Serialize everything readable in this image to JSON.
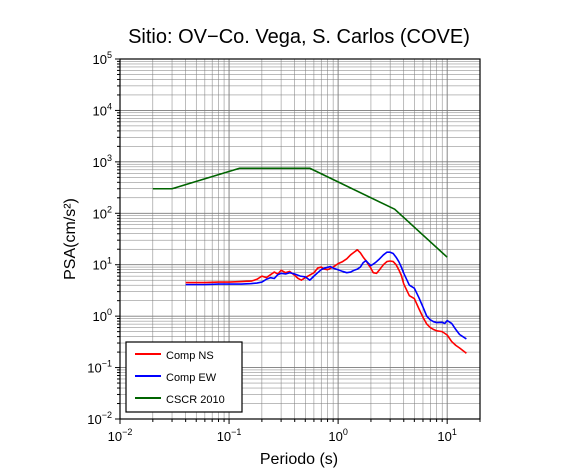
{
  "chart_data": {
    "type": "line",
    "title": "Sitio: OV−Co. Vega, S. Carlos (COVE)",
    "xlabel": "Periodo (s)",
    "ylabel": "PSA(cm/s²)",
    "x_scale": "log",
    "y_scale": "log",
    "xlim": [
      0.01,
      20
    ],
    "ylim": [
      0.01,
      100000
    ],
    "x_ticks": [
      {
        "value": 0.01,
        "base": "10",
        "exp": "−2"
      },
      {
        "value": 0.1,
        "base": "10",
        "exp": "−1"
      },
      {
        "value": 1,
        "base": "10",
        "exp": "0"
      },
      {
        "value": 10,
        "base": "10",
        "exp": "1"
      }
    ],
    "y_ticks": [
      {
        "value": 0.01,
        "base": "10",
        "exp": "−2"
      },
      {
        "value": 0.1,
        "base": "10",
        "exp": "−1"
      },
      {
        "value": 1,
        "base": "10",
        "exp": "0"
      },
      {
        "value": 10,
        "base": "10",
        "exp": "1"
      },
      {
        "value": 100,
        "base": "10",
        "exp": "2"
      },
      {
        "value": 1000,
        "base": "10",
        "exp": "3"
      },
      {
        "value": 10000,
        "base": "10",
        "exp": "4"
      },
      {
        "value": 100000,
        "base": "10",
        "exp": "5"
      }
    ],
    "grid": true,
    "legend_position": "bottom-left",
    "series": [
      {
        "name": "Comp NS",
        "color": "#ff0000",
        "points": [
          [
            0.04,
            4.5
          ],
          [
            0.06,
            4.5
          ],
          [
            0.08,
            4.6
          ],
          [
            0.1,
            4.6
          ],
          [
            0.13,
            4.7
          ],
          [
            0.16,
            4.8
          ],
          [
            0.18,
            5.2
          ],
          [
            0.2,
            6.0
          ],
          [
            0.22,
            5.6
          ],
          [
            0.24,
            6.4
          ],
          [
            0.26,
            7.2
          ],
          [
            0.28,
            6.6
          ],
          [
            0.3,
            7.8
          ],
          [
            0.33,
            7.0
          ],
          [
            0.36,
            7.4
          ],
          [
            0.4,
            6.2
          ],
          [
            0.43,
            5.4
          ],
          [
            0.46,
            5.0
          ],
          [
            0.5,
            5.6
          ],
          [
            0.55,
            6.3
          ],
          [
            0.6,
            7.0
          ],
          [
            0.65,
            8.6
          ],
          [
            0.7,
            9.0
          ],
          [
            0.75,
            8.2
          ],
          [
            0.8,
            8.0
          ],
          [
            0.9,
            9.0
          ],
          [
            1.0,
            10.5
          ],
          [
            1.1,
            11.5
          ],
          [
            1.2,
            13.0
          ],
          [
            1.3,
            15.5
          ],
          [
            1.4,
            17.5
          ],
          [
            1.5,
            19.5
          ],
          [
            1.6,
            17.0
          ],
          [
            1.7,
            14.0
          ],
          [
            1.8,
            12.0
          ],
          [
            1.9,
            10.0
          ],
          [
            2.0,
            8.5
          ],
          [
            2.1,
            7.0
          ],
          [
            2.25,
            6.8
          ],
          [
            2.4,
            8.0
          ],
          [
            2.6,
            10.0
          ],
          [
            2.8,
            11.5
          ],
          [
            3.0,
            11.8
          ],
          [
            3.2,
            11.5
          ],
          [
            3.4,
            10.0
          ],
          [
            3.6,
            8.0
          ],
          [
            3.8,
            6.2
          ],
          [
            4.0,
            4.2
          ],
          [
            4.5,
            2.5
          ],
          [
            5.0,
            2.2
          ],
          [
            5.5,
            1.4
          ],
          [
            6.0,
            0.95
          ],
          [
            6.5,
            0.7
          ],
          [
            7.0,
            0.6
          ],
          [
            7.5,
            0.55
          ],
          [
            8.0,
            0.52
          ],
          [
            9.0,
            0.5
          ],
          [
            10.0,
            0.43
          ],
          [
            11.0,
            0.32
          ],
          [
            12.0,
            0.27
          ],
          [
            13.0,
            0.24
          ],
          [
            15.0,
            0.19
          ]
        ]
      },
      {
        "name": "Comp EW",
        "color": "#0000ff",
        "points": [
          [
            0.04,
            4.1
          ],
          [
            0.06,
            4.1
          ],
          [
            0.08,
            4.2
          ],
          [
            0.1,
            4.2
          ],
          [
            0.13,
            4.2
          ],
          [
            0.16,
            4.3
          ],
          [
            0.18,
            4.4
          ],
          [
            0.2,
            4.6
          ],
          [
            0.22,
            5.2
          ],
          [
            0.24,
            5.6
          ],
          [
            0.26,
            5.4
          ],
          [
            0.28,
            6.4
          ],
          [
            0.3,
            6.8
          ],
          [
            0.33,
            6.6
          ],
          [
            0.36,
            7.0
          ],
          [
            0.4,
            6.6
          ],
          [
            0.45,
            6.0
          ],
          [
            0.5,
            5.8
          ],
          [
            0.55,
            5.0
          ],
          [
            0.6,
            6.0
          ],
          [
            0.65,
            7.0
          ],
          [
            0.7,
            8.0
          ],
          [
            0.75,
            8.6
          ],
          [
            0.8,
            8.9
          ],
          [
            0.85,
            9.2
          ],
          [
            0.9,
            8.6
          ],
          [
            1.0,
            8.0
          ],
          [
            1.1,
            7.4
          ],
          [
            1.2,
            7.0
          ],
          [
            1.3,
            7.2
          ],
          [
            1.4,
            7.8
          ],
          [
            1.5,
            8.2
          ],
          [
            1.6,
            9.0
          ],
          [
            1.7,
            11.0
          ],
          [
            1.8,
            12.0
          ],
          [
            1.9,
            10.6
          ],
          [
            2.0,
            9.6
          ],
          [
            2.2,
            11.0
          ],
          [
            2.4,
            13.0
          ],
          [
            2.6,
            15.5
          ],
          [
            2.8,
            17.5
          ],
          [
            3.0,
            17.5
          ],
          [
            3.2,
            16.5
          ],
          [
            3.4,
            14.0
          ],
          [
            3.6,
            11.5
          ],
          [
            3.8,
            9.0
          ],
          [
            4.0,
            6.8
          ],
          [
            4.5,
            4.0
          ],
          [
            5.0,
            3.5
          ],
          [
            5.5,
            2.3
          ],
          [
            6.0,
            1.5
          ],
          [
            6.5,
            1.0
          ],
          [
            7.0,
            0.85
          ],
          [
            7.5,
            0.78
          ],
          [
            8.0,
            0.75
          ],
          [
            9.0,
            0.76
          ],
          [
            9.5,
            0.72
          ],
          [
            10.0,
            0.82
          ],
          [
            11.0,
            0.72
          ],
          [
            12.0,
            0.55
          ],
          [
            13.0,
            0.44
          ],
          [
            15.0,
            0.36
          ]
        ]
      },
      {
        "name": "CSCR 2010",
        "color": "#006400",
        "points": [
          [
            0.02,
            300
          ],
          [
            0.03,
            300
          ],
          [
            0.125,
            750
          ],
          [
            0.55,
            750
          ],
          [
            3.3,
            120
          ],
          [
            10.0,
            14
          ]
        ]
      }
    ]
  }
}
